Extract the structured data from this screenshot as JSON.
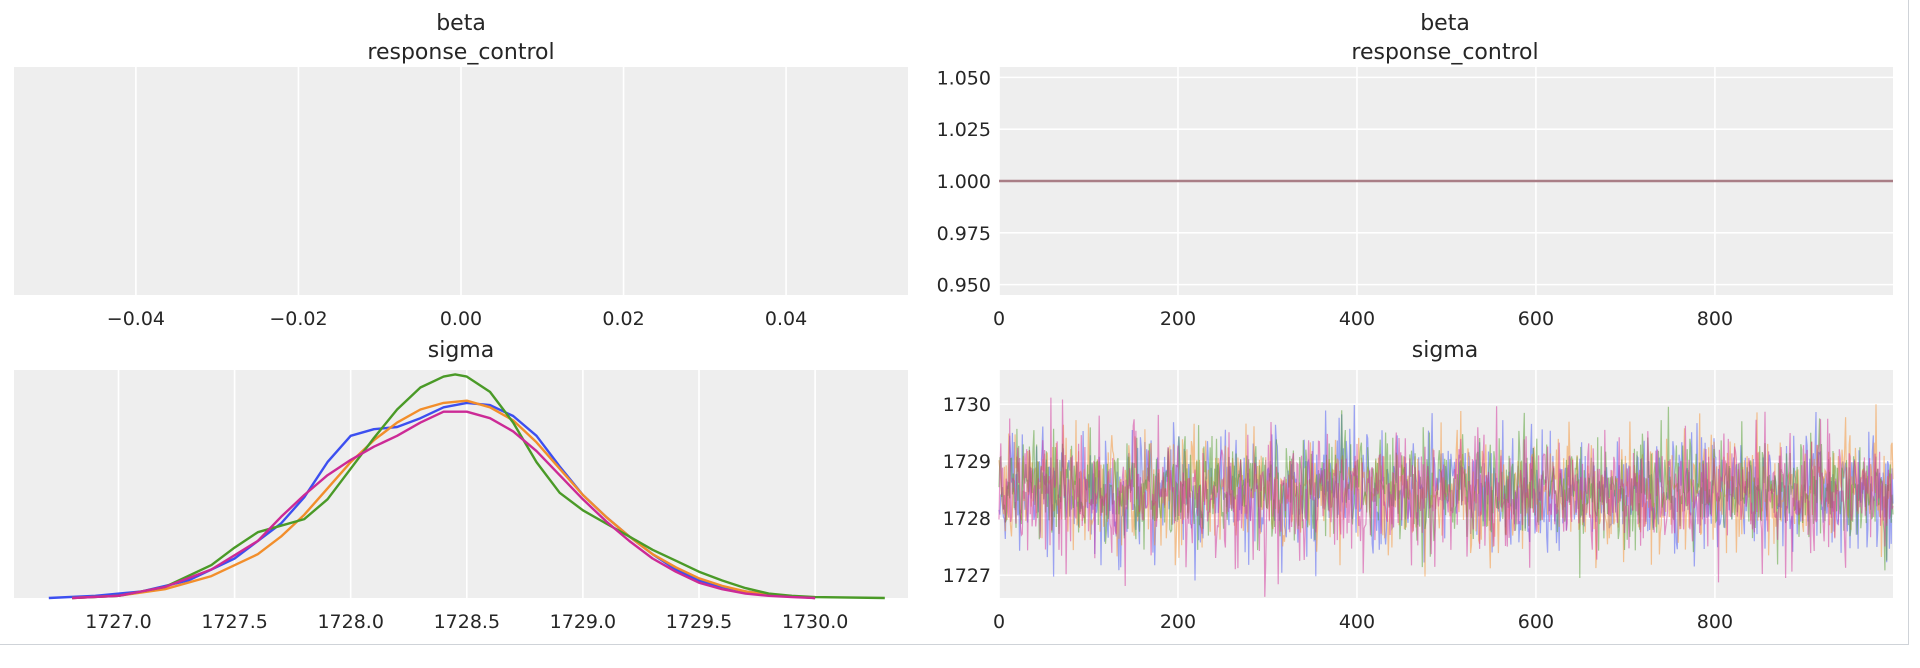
{
  "chart_data": [
    {
      "type": "kde",
      "title_line1": "beta",
      "title_line2": "response_control",
      "xlim": [
        -0.055,
        0.055
      ],
      "x_ticks": [
        -0.04,
        -0.02,
        0.0,
        0.02,
        0.04
      ],
      "x_tick_labels": [
        "−0.04",
        "−0.02",
        "0.00",
        "0.02",
        "0.04"
      ],
      "y_ticks_visible": false,
      "grid": true,
      "series": []
    },
    {
      "type": "line",
      "title_line1": "beta",
      "title_line2": "response_control",
      "xlim": [
        0,
        999
      ],
      "ylim": [
        0.945,
        1.055
      ],
      "x_ticks": [
        0,
        200,
        400,
        600,
        800
      ],
      "x_tick_labels": [
        "0",
        "200",
        "400",
        "600",
        "800"
      ],
      "y_ticks": [
        0.95,
        0.975,
        1.0,
        1.025,
        1.05
      ],
      "y_tick_labels": [
        "0.950",
        "0.975",
        "1.000",
        "1.025",
        "1.050"
      ],
      "grid": true,
      "series": [
        {
          "color": "#a97e86",
          "constant_value": 1.0
        }
      ]
    },
    {
      "type": "kde",
      "title": "sigma",
      "xlim": [
        1726.55,
        1730.4
      ],
      "ylim": [
        0,
        1.04
      ],
      "x_ticks": [
        1727.0,
        1727.5,
        1728.0,
        1728.5,
        1729.0,
        1729.5,
        1730.0
      ],
      "x_tick_labels": [
        "1727.0",
        "1727.5",
        "1728.0",
        "1728.5",
        "1729.0",
        "1729.5",
        "1730.0"
      ],
      "y_ticks_visible": false,
      "grid": true,
      "series": [
        {
          "color": "#3c4ff0",
          "x": [
            1726.7,
            1726.9,
            1727.1,
            1727.3,
            1727.5,
            1727.6,
            1727.7,
            1727.8,
            1727.9,
            1728.0,
            1728.1,
            1728.2,
            1728.3,
            1728.4,
            1728.5,
            1728.6,
            1728.7,
            1728.8,
            1728.9,
            1729.0,
            1729.1,
            1729.2,
            1729.3,
            1729.4,
            1729.5,
            1729.6,
            1729.7,
            1729.8,
            1729.9,
            1730.0
          ],
          "y": [
            0.0,
            0.01,
            0.03,
            0.08,
            0.18,
            0.26,
            0.34,
            0.46,
            0.62,
            0.74,
            0.77,
            0.78,
            0.82,
            0.87,
            0.89,
            0.88,
            0.83,
            0.74,
            0.6,
            0.47,
            0.37,
            0.28,
            0.2,
            0.13,
            0.08,
            0.05,
            0.03,
            0.015,
            0.008,
            0.0
          ]
        },
        {
          "color": "#f28e2b",
          "x": [
            1726.8,
            1727.0,
            1727.2,
            1727.4,
            1727.6,
            1727.7,
            1727.8,
            1727.9,
            1728.0,
            1728.1,
            1728.2,
            1728.3,
            1728.4,
            1728.5,
            1728.6,
            1728.7,
            1728.8,
            1728.9,
            1729.0,
            1729.1,
            1729.2,
            1729.3,
            1729.4,
            1729.5,
            1729.6,
            1729.7,
            1729.8,
            1729.9,
            1730.0
          ],
          "y": [
            0.0,
            0.01,
            0.04,
            0.1,
            0.2,
            0.28,
            0.38,
            0.5,
            0.62,
            0.72,
            0.8,
            0.86,
            0.89,
            0.9,
            0.87,
            0.81,
            0.71,
            0.59,
            0.47,
            0.37,
            0.28,
            0.2,
            0.14,
            0.09,
            0.055,
            0.03,
            0.015,
            0.008,
            0.0
          ]
        },
        {
          "color": "#4a9a27",
          "x": [
            1726.8,
            1727.0,
            1727.2,
            1727.4,
            1727.5,
            1727.6,
            1727.7,
            1727.8,
            1727.9,
            1728.0,
            1728.1,
            1728.2,
            1728.3,
            1728.4,
            1728.45,
            1728.5,
            1728.6,
            1728.7,
            1728.8,
            1728.9,
            1729.0,
            1729.1,
            1729.2,
            1729.3,
            1729.4,
            1729.5,
            1729.6,
            1729.7,
            1729.8,
            1729.9,
            1730.0,
            1730.3
          ],
          "y": [
            0.0,
            0.01,
            0.05,
            0.15,
            0.23,
            0.3,
            0.33,
            0.36,
            0.45,
            0.59,
            0.73,
            0.86,
            0.96,
            1.01,
            1.02,
            1.01,
            0.94,
            0.8,
            0.62,
            0.48,
            0.4,
            0.34,
            0.28,
            0.22,
            0.17,
            0.12,
            0.08,
            0.045,
            0.02,
            0.01,
            0.004,
            0.0
          ]
        },
        {
          "color": "#cc2a96",
          "x": [
            1726.8,
            1727.0,
            1727.2,
            1727.4,
            1727.6,
            1727.7,
            1727.8,
            1727.9,
            1728.0,
            1728.1,
            1728.2,
            1728.3,
            1728.4,
            1728.5,
            1728.6,
            1728.7,
            1728.8,
            1728.9,
            1729.0,
            1729.1,
            1729.2,
            1729.3,
            1729.4,
            1729.5,
            1729.6,
            1729.7,
            1729.8,
            1729.9,
            1730.0
          ],
          "y": [
            0.0,
            0.01,
            0.05,
            0.13,
            0.26,
            0.37,
            0.47,
            0.56,
            0.63,
            0.69,
            0.74,
            0.8,
            0.85,
            0.85,
            0.82,
            0.76,
            0.67,
            0.56,
            0.45,
            0.35,
            0.26,
            0.18,
            0.12,
            0.07,
            0.04,
            0.02,
            0.01,
            0.004,
            0.0
          ]
        }
      ]
    },
    {
      "type": "line",
      "title": "sigma",
      "xlim": [
        0,
        999
      ],
      "ylim": [
        1726.6,
        1730.6
      ],
      "x_ticks": [
        0,
        200,
        400,
        600,
        800
      ],
      "x_tick_labels": [
        "0",
        "200",
        "400",
        "600",
        "800"
      ],
      "y_ticks": [
        1727,
        1728,
        1729,
        1730
      ],
      "y_tick_labels": [
        "1727",
        "1728",
        "1729",
        "1730"
      ],
      "grid": true,
      "draws": 1000,
      "series": [
        {
          "color": "#4656f5",
          "mean": 1728.45,
          "sd": 0.5
        },
        {
          "color": "#f58f2d",
          "mean": 1728.47,
          "sd": 0.5
        },
        {
          "color": "#4e9c2a",
          "mean": 1728.5,
          "sd": 0.48
        },
        {
          "color": "#d12c98",
          "mean": 1728.45,
          "sd": 0.52
        }
      ]
    }
  ]
}
